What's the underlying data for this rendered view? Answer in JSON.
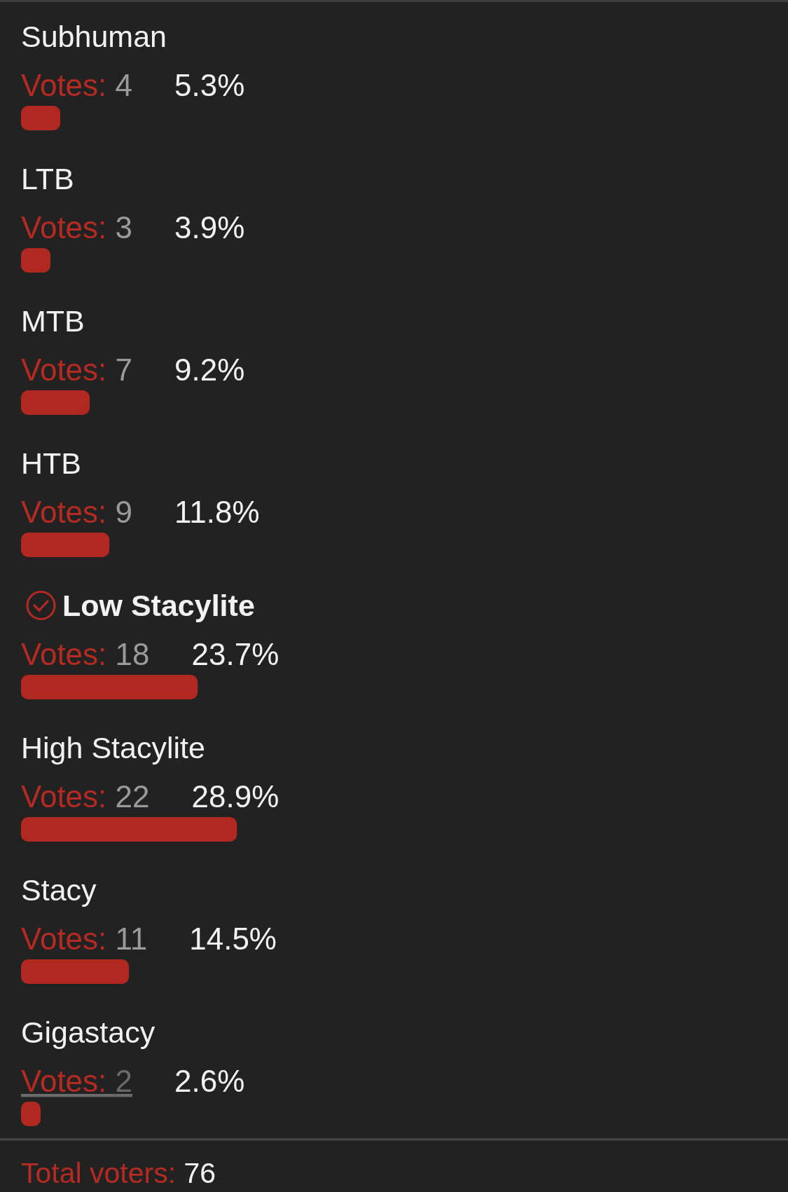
{
  "chart_data": {
    "type": "bar",
    "orientation": "horizontal",
    "tick_labels": "y",
    "categories": [
      "Subhuman",
      "LTB",
      "MTB",
      "HTB",
      "Low Stacylite",
      "High Stacylite",
      "Stacy",
      "Gigastacy"
    ],
    "values": [
      4,
      3,
      7,
      9,
      18,
      22,
      11,
      2
    ],
    "color": "#b0281f",
    "value_labels": [
      "Votes: 4",
      "Votes: 3",
      "Votes: 7",
      "Votes: 9",
      "Votes: 18",
      "Votes: 22",
      "Votes: 11",
      "Votes: 2"
    ],
    "annotations": [
      "5.3%",
      "3.9%",
      "9.2%",
      "11.8%",
      "23.7%",
      "28.9%",
      "14.5%",
      "2.6%",
      "Total voters: 76"
    ]
  }
}
